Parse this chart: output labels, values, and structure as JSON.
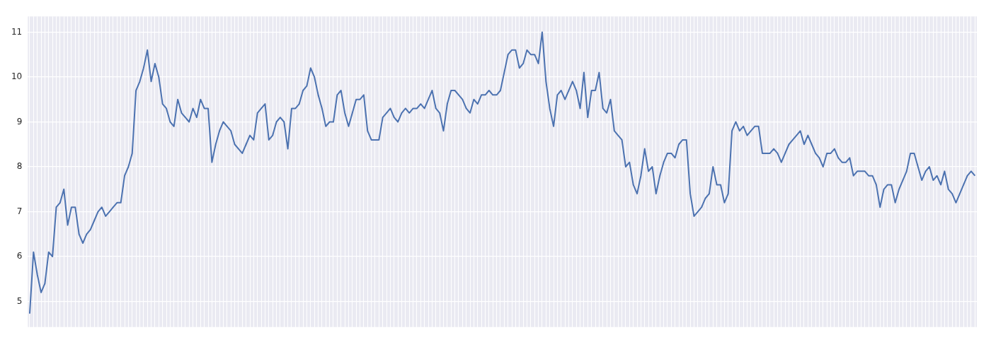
{
  "chart_data": {
    "type": "line",
    "categories": [
      null,
      null,
      null,
      null,
      null,
      null,
      null,
      null,
      null,
      null,
      null,
      null,
      null,
      null,
      null,
      null,
      null,
      null,
      null,
      null,
      null,
      null,
      null,
      null,
      null,
      null,
      null,
      null,
      null,
      null,
      null,
      null,
      null,
      null,
      null,
      null,
      null,
      null,
      null,
      null,
      null,
      null,
      null,
      null,
      null,
      null,
      null,
      null,
      null,
      null,
      null,
      null,
      null,
      null,
      null,
      null,
      null,
      null,
      null,
      null,
      null,
      null,
      null,
      null,
      null,
      null,
      null,
      null,
      null,
      null,
      null,
      null,
      null,
      null,
      null,
      null,
      null,
      null,
      null,
      null,
      null,
      null,
      null,
      null,
      null,
      null,
      null,
      null,
      null,
      null,
      null,
      null,
      null,
      null,
      null,
      null,
      null,
      null,
      null,
      null,
      null,
      null,
      null,
      null,
      null,
      null,
      null,
      null,
      null,
      null,
      null,
      null,
      null,
      null,
      null,
      null,
      null,
      null,
      null,
      null,
      null,
      null,
      null,
      null,
      null,
      null,
      null,
      null,
      null,
      null,
      null,
      null,
      null,
      null,
      null,
      null,
      null,
      null,
      null,
      null,
      null,
      null,
      null,
      null,
      null,
      null,
      null,
      null,
      null,
      null,
      null,
      null,
      null,
      null,
      null,
      null,
      null,
      null,
      null,
      null,
      null,
      null,
      null,
      null,
      null,
      null,
      null,
      null,
      null,
      null,
      null,
      null,
      null,
      null,
      null,
      null,
      null,
      null,
      null,
      null,
      null,
      null,
      null,
      null,
      null,
      null,
      null,
      null,
      null,
      null,
      null,
      null,
      null,
      null,
      null,
      null,
      null,
      null,
      null,
      null,
      null,
      null,
      null,
      null,
      null,
      null,
      null,
      null,
      null,
      null,
      null,
      null,
      null,
      null,
      null,
      null,
      null,
      null,
      null,
      null,
      null,
      null,
      null,
      null,
      null,
      null,
      null,
      null,
      null,
      null,
      null,
      null,
      null,
      null,
      null,
      null,
      null,
      null,
      null,
      null,
      null,
      null,
      null,
      null,
      null,
      null,
      null,
      null,
      null,
      null
    ],
    "series": [
      {
        "color": "#4c72b0",
        "values": [
          4.73,
          6.1,
          5.6,
          5.2,
          5.4,
          6.1,
          6.0,
          7.1,
          7.2,
          7.5,
          6.7,
          7.1,
          7.1,
          6.5,
          6.3,
          6.5,
          6.6,
          6.8,
          7.0,
          7.1,
          6.9,
          7.0,
          7.1,
          7.2,
          7.2,
          7.8,
          8.0,
          8.3,
          9.7,
          9.9,
          10.2,
          10.6,
          9.9,
          10.3,
          10.0,
          9.4,
          9.3,
          9.0,
          8.9,
          9.5,
          9.2,
          9.1,
          9.0,
          9.3,
          9.1,
          9.5,
          9.3,
          9.3,
          8.1,
          8.5,
          8.8,
          9.0,
          8.9,
          8.8,
          8.5,
          8.4,
          8.3,
          8.5,
          8.7,
          8.6,
          9.2,
          9.3,
          9.4,
          8.6,
          8.7,
          9.0,
          9.1,
          9.0,
          8.4,
          9.3,
          9.3,
          9.4,
          9.7,
          9.8,
          10.2,
          10.0,
          9.6,
          9.3,
          8.9,
          9.0,
          9.0,
          9.6,
          9.7,
          9.2,
          8.9,
          9.2,
          9.5,
          9.5,
          9.6,
          8.8,
          8.6,
          8.6,
          8.6,
          9.1,
          9.2,
          9.3,
          9.1,
          9.0,
          9.2,
          9.3,
          9.2,
          9.3,
          9.3,
          9.4,
          9.3,
          9.5,
          9.7,
          9.3,
          9.2,
          8.8,
          9.4,
          9.7,
          9.7,
          9.6,
          9.5,
          9.3,
          9.2,
          9.5,
          9.4,
          9.6,
          9.6,
          9.7,
          9.6,
          9.6,
          9.7,
          10.1,
          10.5,
          10.6,
          10.6,
          10.2,
          10.3,
          10.6,
          10.5,
          10.5,
          10.3,
          11.0,
          9.9,
          9.3,
          8.9,
          9.6,
          9.7,
          9.5,
          9.7,
          9.9,
          9.7,
          9.3,
          10.1,
          9.1,
          9.7,
          9.7,
          10.1,
          9.3,
          9.2,
          9.5,
          8.8,
          8.7,
          8.6,
          8.0,
          8.1,
          7.6,
          7.4,
          7.8,
          8.4,
          7.9,
          8.0,
          7.4,
          7.8,
          8.1,
          8.3,
          8.3,
          8.2,
          8.5,
          8.6,
          8.6,
          7.4,
          6.9,
          7.0,
          7.1,
          7.3,
          7.4,
          8.0,
          7.6,
          7.6,
          7.2,
          7.4,
          8.8,
          9.0,
          8.8,
          8.9,
          8.7,
          8.8,
          8.9,
          8.9,
          8.3,
          8.3,
          8.3,
          8.4,
          8.3,
          8.1,
          8.3,
          8.5,
          8.6,
          8.7,
          8.8,
          8.5,
          8.7,
          8.5,
          8.3,
          8.2,
          8.0,
          8.3,
          8.3,
          8.4,
          8.2,
          8.1,
          8.1,
          8.2,
          7.8,
          7.9,
          7.9,
          7.9,
          7.8,
          7.8,
          7.6,
          7.1,
          7.5,
          7.6,
          7.6,
          7.2,
          7.5,
          7.7,
          7.9,
          8.3,
          8.3,
          8.0,
          7.7,
          7.9,
          8.0,
          7.7,
          7.8,
          7.6,
          7.9,
          7.5,
          7.4,
          7.2,
          7.4,
          7.6,
          7.8,
          7.9,
          7.8
        ]
      }
    ],
    "ylim": [
      4.43,
      11.35
    ],
    "yticks": [
      5,
      6,
      7,
      8,
      9,
      10,
      11
    ],
    "grid": true,
    "tick_labels": "y",
    "marker": "none",
    "line_style": "solid"
  }
}
